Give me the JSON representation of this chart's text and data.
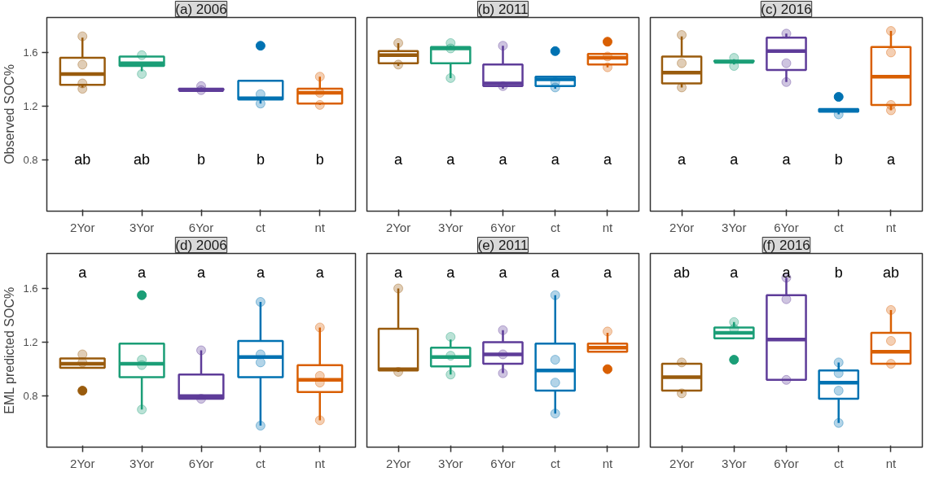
{
  "chart_data": [
    {
      "type": "box",
      "title": "(a) 2006",
      "ylabel": "Observed SOC%",
      "categories": [
        "2Yor",
        "3Yor",
        "6Yor",
        "ct",
        "nt"
      ],
      "colors": [
        "#995b0d",
        "#1b9e77",
        "#5e3c99",
        "#0072b2",
        "#d95f02"
      ],
      "ylim": [
        0.42,
        1.86
      ],
      "yticks": [
        0.8,
        1.2,
        1.6
      ],
      "grid": false,
      "boxes": [
        {
          "low": 1.34,
          "q1": 1.36,
          "median": 1.44,
          "q3": 1.56,
          "high": 1.71
        },
        {
          "low": 1.46,
          "q1": 1.5,
          "median": 1.52,
          "q3": 1.57,
          "high": 1.57
        },
        {
          "low": 1.31,
          "q1": 1.32,
          "median": 1.32,
          "q3": 1.33,
          "high": 1.34
        },
        {
          "low": 1.22,
          "q1": 1.25,
          "median": 1.26,
          "q3": 1.39,
          "high": 1.39,
          "outliers": [
            1.65
          ]
        },
        {
          "low": 1.21,
          "q1": 1.22,
          "median": 1.3,
          "q3": 1.33,
          "high": 1.42
        }
      ],
      "series": [
        {
          "type": "scatter",
          "x": [
            "2Yor",
            "2Yor",
            "2Yor",
            "2Yor",
            "3Yor",
            "3Yor",
            "6Yor",
            "6Yor",
            "ct",
            "ct",
            "nt",
            "nt",
            "nt"
          ],
          "values": [
            1.72,
            1.51,
            1.37,
            1.33,
            1.58,
            1.44,
            1.35,
            1.32,
            1.29,
            1.22,
            1.42,
            1.3,
            1.21
          ],
          "colors": [
            "#995b0d",
            "#995b0d",
            "#995b0d",
            "#995b0d",
            "#1b9e77",
            "#1b9e77",
            "#5e3c99",
            "#5e3c99",
            "#0072b2",
            "#0072b2",
            "#d95f02",
            "#d95f02",
            "#d95f02"
          ]
        }
      ],
      "annotations": [
        "ab",
        "ab",
        "b",
        "b",
        "b"
      ]
    },
    {
      "type": "box",
      "title": "(b) 2011",
      "categories": [
        "2Yor",
        "3Yor",
        "6Yor",
        "ct",
        "nt"
      ],
      "colors": [
        "#995b0d",
        "#1b9e77",
        "#5e3c99",
        "#0072b2",
        "#d95f02"
      ],
      "ylim": [
        0.42,
        1.86
      ],
      "yticks": [
        0.8,
        1.2,
        1.6
      ],
      "grid": false,
      "tick_labels": "x",
      "boxes": [
        {
          "low": 1.5,
          "q1": 1.52,
          "median": 1.58,
          "q3": 1.61,
          "high": 1.67
        },
        {
          "low": 1.41,
          "q1": 1.52,
          "median": 1.63,
          "q3": 1.64,
          "high": 1.65
        },
        {
          "low": 1.33,
          "q1": 1.35,
          "median": 1.37,
          "q3": 1.51,
          "high": 1.65
        },
        {
          "low": 1.33,
          "q1": 1.35,
          "median": 1.4,
          "q3": 1.42,
          "high": 1.42,
          "outliers": [
            1.61
          ]
        },
        {
          "low": 1.49,
          "q1": 1.51,
          "median": 1.56,
          "q3": 1.59,
          "high": 1.59,
          "outliers": [
            1.68
          ]
        }
      ],
      "series": [
        {
          "type": "scatter",
          "x": [
            "2Yor",
            "2Yor",
            "3Yor",
            "3Yor",
            "3Yor",
            "6Yor",
            "6Yor",
            "ct",
            "ct",
            "nt",
            "nt"
          ],
          "values": [
            1.67,
            1.51,
            1.67,
            1.63,
            1.41,
            1.65,
            1.35,
            1.38,
            1.34,
            1.57,
            1.49
          ],
          "colors": [
            "#995b0d",
            "#995b0d",
            "#1b9e77",
            "#1b9e77",
            "#1b9e77",
            "#5e3c99",
            "#5e3c99",
            "#0072b2",
            "#0072b2",
            "#d95f02",
            "#d95f02"
          ]
        }
      ],
      "annotations": [
        "a",
        "a",
        "a",
        "a",
        "a"
      ]
    },
    {
      "type": "box",
      "title": "(c) 2016",
      "categories": [
        "2Yor",
        "3Yor",
        "6Yor",
        "ct",
        "nt"
      ],
      "colors": [
        "#995b0d",
        "#1b9e77",
        "#5e3c99",
        "#0072b2",
        "#d95f02"
      ],
      "ylim": [
        0.42,
        1.86
      ],
      "yticks": [
        0.8,
        1.2,
        1.6
      ],
      "grid": false,
      "tick_labels": "x",
      "boxes": [
        {
          "low": 1.34,
          "q1": 1.37,
          "median": 1.45,
          "q3": 1.57,
          "high": 1.72
        },
        {
          "low": 1.51,
          "q1": 1.53,
          "median": 1.53,
          "q3": 1.54,
          "high": 1.55
        },
        {
          "low": 1.38,
          "q1": 1.47,
          "median": 1.61,
          "q3": 1.71,
          "high": 1.74
        },
        {
          "low": 1.14,
          "q1": 1.16,
          "median": 1.17,
          "q3": 1.18,
          "high": 1.18,
          "outliers": [
            1.27
          ]
        },
        {
          "low": 1.17,
          "q1": 1.21,
          "median": 1.42,
          "q3": 1.64,
          "high": 1.76
        }
      ],
      "series": [
        {
          "type": "scatter",
          "x": [
            "2Yor",
            "2Yor",
            "2Yor",
            "3Yor",
            "3Yor",
            "6Yor",
            "6Yor",
            "6Yor",
            "ct",
            "nt",
            "nt",
            "nt",
            "nt"
          ],
          "values": [
            1.73,
            1.52,
            1.34,
            1.56,
            1.5,
            1.74,
            1.52,
            1.38,
            1.14,
            1.76,
            1.6,
            1.21,
            1.17
          ],
          "colors": [
            "#995b0d",
            "#995b0d",
            "#995b0d",
            "#1b9e77",
            "#1b9e77",
            "#5e3c99",
            "#5e3c99",
            "#5e3c99",
            "#0072b2",
            "#d95f02",
            "#d95f02",
            "#d95f02",
            "#d95f02"
          ]
        }
      ],
      "annotations": [
        "a",
        "a",
        "a",
        "b",
        "a"
      ]
    },
    {
      "type": "box",
      "title": "(d) 2006",
      "ylabel": "EML predicted SOC%",
      "categories": [
        "2Yor",
        "3Yor",
        "6Yor",
        "ct",
        "nt"
      ],
      "colors": [
        "#995b0d",
        "#1b9e77",
        "#5e3c99",
        "#0072b2",
        "#d95f02"
      ],
      "ylim": [
        0.42,
        1.86
      ],
      "yticks": [
        0.8,
        1.2,
        1.6
      ],
      "grid": false,
      "boxes": [
        {
          "low": 1.01,
          "q1": 1.01,
          "median": 1.04,
          "q3": 1.08,
          "high": 1.08,
          "outliers": [
            0.84
          ]
        },
        {
          "low": 0.7,
          "q1": 0.94,
          "median": 1.04,
          "q3": 1.19,
          "high": 1.19,
          "outliers": [
            1.55
          ]
        },
        {
          "low": 0.78,
          "q1": 0.78,
          "median": 0.8,
          "q3": 0.96,
          "high": 1.14
        },
        {
          "low": 0.58,
          "q1": 0.94,
          "median": 1.09,
          "q3": 1.21,
          "high": 1.5
        },
        {
          "low": 0.62,
          "q1": 0.83,
          "median": 0.92,
          "q3": 1.03,
          "high": 1.31
        }
      ],
      "series": [
        {
          "type": "scatter",
          "x": [
            "2Yor",
            "2Yor",
            "3Yor",
            "3Yor",
            "3Yor",
            "6Yor",
            "6Yor",
            "ct",
            "ct",
            "ct",
            "ct",
            "nt",
            "nt",
            "nt",
            "nt"
          ],
          "values": [
            1.11,
            1.05,
            1.07,
            1.03,
            0.7,
            1.14,
            0.78,
            1.5,
            1.11,
            1.05,
            0.58,
            1.31,
            0.95,
            0.9,
            0.62
          ],
          "colors": [
            "#995b0d",
            "#995b0d",
            "#1b9e77",
            "#1b9e77",
            "#1b9e77",
            "#5e3c99",
            "#5e3c99",
            "#0072b2",
            "#0072b2",
            "#0072b2",
            "#0072b2",
            "#d95f02",
            "#d95f02",
            "#d95f02",
            "#d95f02"
          ]
        }
      ],
      "annotations": [
        "a",
        "a",
        "a",
        "a",
        "a"
      ]
    },
    {
      "type": "box",
      "title": "(e) 2011",
      "categories": [
        "2Yor",
        "3Yor",
        "6Yor",
        "ct",
        "nt"
      ],
      "colors": [
        "#995b0d",
        "#1b9e77",
        "#5e3c99",
        "#0072b2",
        "#d95f02"
      ],
      "ylim": [
        0.42,
        1.86
      ],
      "yticks": [
        0.8,
        1.2,
        1.6
      ],
      "grid": false,
      "tick_labels": "x",
      "boxes": [
        {
          "low": 0.98,
          "q1": 0.99,
          "median": 1.0,
          "q3": 1.3,
          "high": 1.6
        },
        {
          "low": 0.96,
          "q1": 1.02,
          "median": 1.09,
          "q3": 1.16,
          "high": 1.22
        },
        {
          "low": 0.97,
          "q1": 1.04,
          "median": 1.11,
          "q3": 1.2,
          "high": 1.29
        },
        {
          "low": 0.67,
          "q1": 0.84,
          "median": 0.99,
          "q3": 1.19,
          "high": 1.55
        },
        {
          "low": 1.13,
          "q1": 1.13,
          "median": 1.16,
          "q3": 1.19,
          "high": 1.27,
          "outliers": [
            1.0
          ]
        }
      ],
      "series": [
        {
          "type": "scatter",
          "x": [
            "2Yor",
            "2Yor",
            "3Yor",
            "3Yor",
            "3Yor",
            "6Yor",
            "6Yor",
            "6Yor",
            "ct",
            "ct",
            "ct",
            "ct",
            "nt"
          ],
          "values": [
            1.6,
            0.98,
            1.24,
            1.1,
            0.96,
            1.29,
            1.11,
            0.97,
            1.55,
            1.07,
            0.9,
            0.67,
            1.28
          ],
          "colors": [
            "#995b0d",
            "#995b0d",
            "#1b9e77",
            "#1b9e77",
            "#1b9e77",
            "#5e3c99",
            "#5e3c99",
            "#5e3c99",
            "#0072b2",
            "#0072b2",
            "#0072b2",
            "#0072b2",
            "#d95f02"
          ]
        }
      ],
      "annotations": [
        "a",
        "a",
        "a",
        "a",
        "a"
      ]
    },
    {
      "type": "box",
      "title": "(f) 2016",
      "categories": [
        "2Yor",
        "3Yor",
        "6Yor",
        "ct",
        "nt"
      ],
      "colors": [
        "#995b0d",
        "#1b9e77",
        "#5e3c99",
        "#0072b2",
        "#d95f02"
      ],
      "ylim": [
        0.42,
        1.86
      ],
      "yticks": [
        0.8,
        1.2,
        1.6
      ],
      "grid": false,
      "tick_labels": "x",
      "boxes": [
        {
          "low": 0.82,
          "q1": 0.84,
          "median": 0.94,
          "q3": 1.04,
          "high": 1.05
        },
        {
          "low": 1.23,
          "q1": 1.23,
          "median": 1.27,
          "q3": 1.31,
          "high": 1.35,
          "outliers": [
            1.07
          ]
        },
        {
          "low": 0.92,
          "q1": 0.92,
          "median": 1.22,
          "q3": 1.55,
          "high": 1.68
        },
        {
          "low": 0.6,
          "q1": 0.78,
          "median": 0.9,
          "q3": 0.99,
          "high": 1.05
        },
        {
          "low": 1.04,
          "q1": 1.04,
          "median": 1.13,
          "q3": 1.27,
          "high": 1.44
        }
      ],
      "series": [
        {
          "type": "scatter",
          "x": [
            "2Yor",
            "2Yor",
            "3Yor",
            "3Yor",
            "6Yor",
            "6Yor",
            "6Yor",
            "ct",
            "ct",
            "ct",
            "ct",
            "nt",
            "nt",
            "nt"
          ],
          "values": [
            1.05,
            0.82,
            1.35,
            1.3,
            1.68,
            1.52,
            0.92,
            1.05,
            0.97,
            0.84,
            0.6,
            1.44,
            1.21,
            1.04
          ],
          "colors": [
            "#995b0d",
            "#995b0d",
            "#1b9e77",
            "#1b9e77",
            "#5e3c99",
            "#5e3c99",
            "#5e3c99",
            "#0072b2",
            "#0072b2",
            "#0072b2",
            "#0072b2",
            "#d95f02",
            "#d95f02",
            "#d95f02"
          ]
        }
      ],
      "annotations": [
        "ab",
        "a",
        "a",
        "b",
        "ab"
      ]
    }
  ]
}
